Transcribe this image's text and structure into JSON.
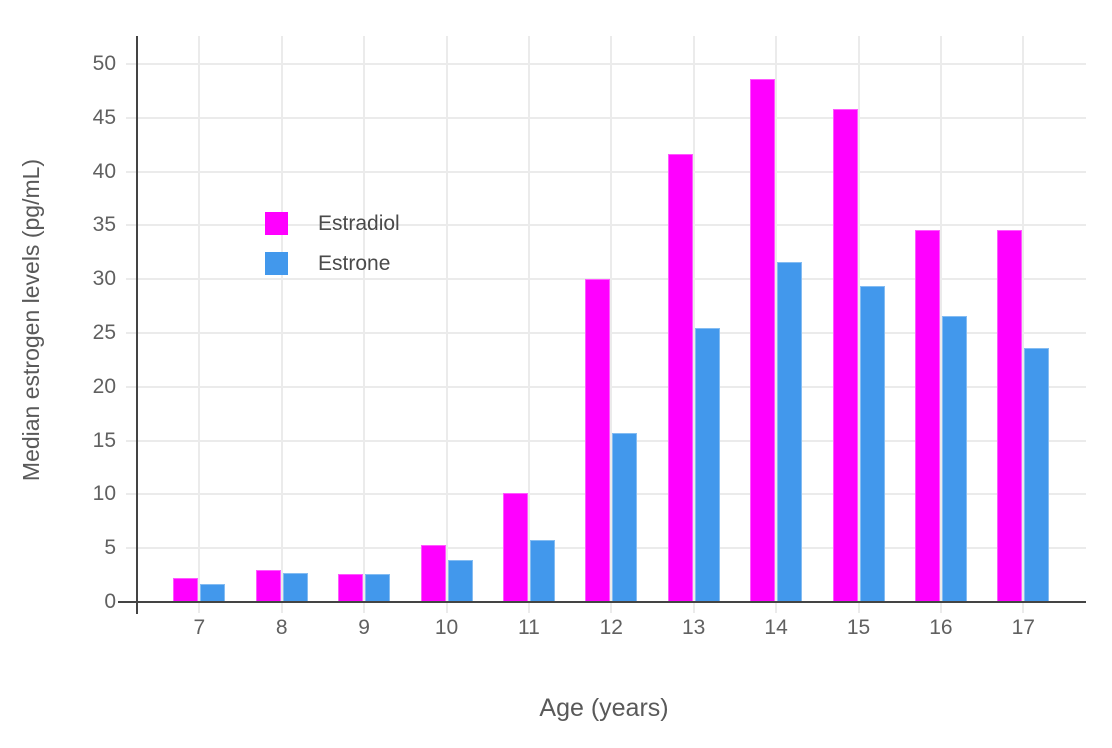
{
  "chart_data": {
    "type": "bar",
    "bar_mode": "grouped",
    "title": "",
    "xlabel": "Age (years)",
    "ylabel": "Median estrogen levels (pg/mL)",
    "categories": [
      "7",
      "8",
      "9",
      "10",
      "11",
      "12",
      "13",
      "14",
      "15",
      "16",
      "17"
    ],
    "series": [
      {
        "name": "Estradiol",
        "color": "#FF00FF",
        "values": [
          2.2,
          3.0,
          2.6,
          5.3,
          10.1,
          30.0,
          41.6,
          48.6,
          45.8,
          34.6,
          34.6
        ]
      },
      {
        "name": "Estrone",
        "color": "#4298EC",
        "values": [
          1.7,
          2.7,
          2.6,
          3.9,
          5.8,
          15.7,
          25.5,
          31.6,
          29.4,
          26.6,
          23.6
        ]
      }
    ],
    "yticks": [
      "0",
      "5",
      "10",
      "15",
      "20",
      "25",
      "30",
      "35",
      "40",
      "45",
      "50"
    ],
    "ylim": [
      0,
      52.5
    ],
    "grid": true,
    "legend_position": "inside-top-left"
  },
  "palette": {
    "background": "#FFFFFF",
    "gridline": "#EBEBEB",
    "axis_line": "#444444",
    "tick_label": "#606060",
    "axis_title": "#595959",
    "legend_text": "#4A4A4A"
  }
}
